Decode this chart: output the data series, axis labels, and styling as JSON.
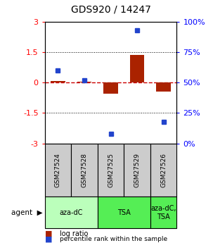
{
  "title": "GDS920 / 14247",
  "samples": [
    "GSM27524",
    "GSM27528",
    "GSM27525",
    "GSM27529",
    "GSM27526"
  ],
  "log_ratio": [
    0.07,
    0.03,
    -0.55,
    1.35,
    -0.45
  ],
  "percentile_rank": [
    60,
    52,
    8,
    93,
    18
  ],
  "agents": [
    {
      "label": "aza-dC",
      "cols": [
        0,
        1
      ],
      "color": "#bbffbb"
    },
    {
      "label": "TSA",
      "cols": [
        2,
        3
      ],
      "color": "#55ee55"
    },
    {
      "label": "aza-dC,\nTSA",
      "cols": [
        4
      ],
      "color": "#55ee55"
    }
  ],
  "ylim": [
    -3,
    3
  ],
  "yticks_left": [
    -3,
    -1.5,
    0,
    1.5,
    3
  ],
  "yticks_right_vals": [
    0,
    25,
    50,
    75,
    100
  ],
  "bar_color": "#aa2200",
  "dot_color": "#2244cc",
  "hline_color": "#cc0000",
  "bg_color": "#ffffff",
  "sample_box_color": "#cccccc",
  "agent_label": "agent"
}
